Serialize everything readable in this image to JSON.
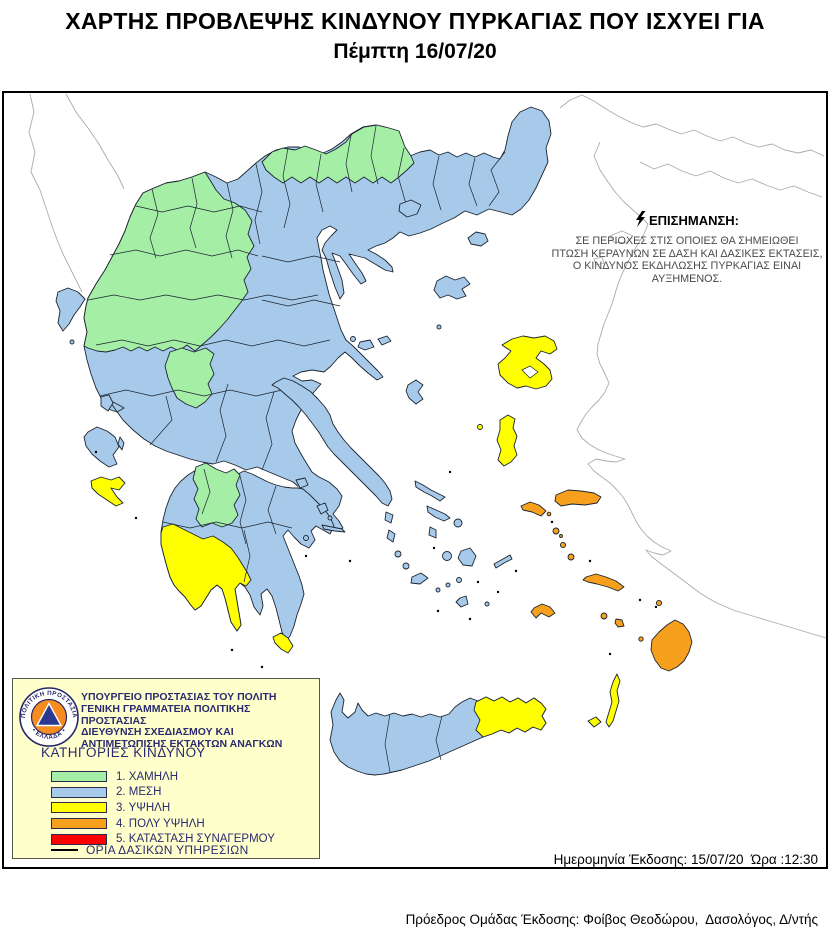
{
  "title": {
    "line1": "ΧΑΡΤΗΣ ΠΡΟΒΛΕΨΗΣ ΚΙΝΔΥΝΟΥ ΠΥΡΚΑΓΙΑΣ ΠΟΥ ΙΣΧΥΕΙ ΓΙΑ",
    "line2": "Πέμπτη 16/07/20"
  },
  "notice": {
    "heading": "ΕΠΙΣΗΜΑΝΣΗ:",
    "line1": "ΣΕ ΠΕΡΙΟΧΕΣ ΣΤΙΣ ΟΠΟΙΕΣ ΘΑ ΣΗΜΕΙΩΘΕΙ",
    "line2": "ΠΤΩΣΗ ΚΕΡΑΥΝΩΝ ΣΕ ΔΑΣΗ ΚΑΙ ΔΑΣΙΚΕΣ ΕΚΤΑΣΕΙΣ,",
    "line3": "Ο ΚΙΝΔΥΝΟΣ ΕΚΔΗΛΩΣΗΣ ΠΥΡΚΑΓΙΑΣ ΕΙΝΑΙ ΑΥΞΗΜΕΝΟΣ."
  },
  "legend": {
    "org_line1": "ΥΠΟΥΡΓΕΙΟ ΠΡΟΣΤΑΣΙΑΣ ΤΟΥ ΠΟΛΙΤΗ",
    "org_line2": "ΓΕΝΙΚΗ ΓΡΑΜΜΑΤΕΙΑ ΠΟΛΙΤΙΚΗΣ ΠΡΟΣΤΑΣΙΑΣ",
    "org_line3": "ΔΙΕΥΘΥΝΣΗ ΣΧΕΔΙΑΣΜΟΥ ΚΑΙ",
    "org_line4": "ΑΝΤΙΜΕΤΩΠΙΣΗΣ ΕΚΤΑΚΤΩΝ ΑΝΑΓΚΩΝ",
    "categories_heading": "ΚΑΤΗΓΟΡΙΕΣ ΚΙΝΔΥΝΟΥ",
    "items": [
      {
        "label": "1. ΧΑΜΗΛΗ",
        "color": "#A5EEA5",
        "level": "low"
      },
      {
        "label": "2. ΜΕΣΗ",
        "color": "#A8CAEA",
        "level": "medium"
      },
      {
        "label": "3. ΥΨΗΛΗ",
        "color": "#FFFF00",
        "level": "high"
      },
      {
        "label": "4. ΠΟΛΥ ΥΨΗΛΗ",
        "color": "#F6A01E",
        "level": "very-high"
      },
      {
        "label": "5. ΚΑΤΑΣΤΑΣΗ ΣΥΝΑΓΕΡΜΟΥ",
        "color": "#FF0000",
        "level": "alarm"
      }
    ],
    "boundary_label": "ΟΡΙΑ ΔΑΣΙΚΩΝ ΥΠΗΡΕΣΙΩΝ",
    "logo": {
      "ring_text_top": "ΠΟΛΙΤΙΚΗ ΠΡΟΣΤΑΣΙΑ",
      "ring_text_bottom": "• ΕΛΛΑΔΑ •"
    }
  },
  "footer": {
    "issue_line": "Ημερομηνία Έκδοσης: 15/07/20  Ώρα :12:30",
    "issuer_line": "Πρόεδρος Ομάδας Έκδοσης: Φοίβος Θεοδώρου,  Δασολόγος, Δ/ντής"
  },
  "map": {
    "colors": {
      "low": "#A5EEA5",
      "medium": "#A8CAEA",
      "high": "#FFFF00",
      "very_high": "#F6A01E",
      "alarm": "#FF0000",
      "region_border": "#1b2430",
      "neighbor_outline": "#ababab",
      "legend_bg": "#FFFFCC"
    }
  }
}
